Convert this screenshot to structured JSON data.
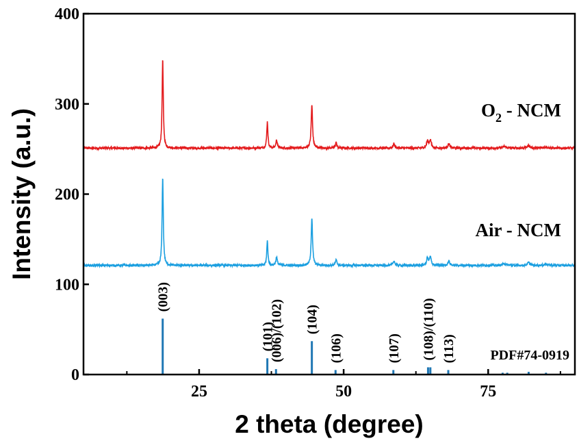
{
  "chart_data": {
    "type": "line",
    "title": "",
    "xlabel": "2 theta (degree)",
    "ylabel": "Intensity (a.u.)",
    "xlim": [
      5,
      90
    ],
    "ylim": [
      0,
      400
    ],
    "x_ticks": [
      25,
      50,
      75
    ],
    "x_ticks_minor": [
      12.5,
      37.5,
      62.5,
      87.5
    ],
    "y_ticks": [
      0,
      100,
      200,
      300,
      400
    ],
    "series": [
      {
        "name": "O₂ - NCM",
        "label_main": "O",
        "label_sub": "2",
        "label_rest": " - NCM",
        "color": "#e31a1c",
        "baseline": 251,
        "noise": 1.2,
        "peaks": [
          {
            "x": 18.7,
            "height": 99,
            "w": 0.12
          },
          {
            "x": 36.8,
            "height": 29,
            "w": 0.12
          },
          {
            "x": 38.4,
            "height": 9,
            "w": 0.15
          },
          {
            "x": 44.5,
            "height": 48,
            "w": 0.14
          },
          {
            "x": 48.7,
            "height": 6,
            "w": 0.15
          },
          {
            "x": 58.7,
            "height": 5,
            "w": 0.18
          },
          {
            "x": 64.5,
            "height": 8,
            "w": 0.18
          },
          {
            "x": 65.0,
            "height": 9,
            "w": 0.18
          },
          {
            "x": 68.2,
            "height": 5,
            "w": 0.18
          },
          {
            "x": 77.8,
            "height": 2,
            "w": 0.3
          },
          {
            "x": 82.0,
            "height": 3,
            "w": 0.25
          },
          {
            "x": 85.0,
            "height": 1.5,
            "w": 0.3
          }
        ]
      },
      {
        "name": "Air - NCM",
        "label_main": "Air - NCM",
        "color": "#1b9fe0",
        "baseline": 121,
        "noise": 1.2,
        "peaks": [
          {
            "x": 18.7,
            "height": 99,
            "w": 0.12
          },
          {
            "x": 36.8,
            "height": 27,
            "w": 0.12
          },
          {
            "x": 38.4,
            "height": 9,
            "w": 0.15
          },
          {
            "x": 44.5,
            "height": 52,
            "w": 0.14
          },
          {
            "x": 48.7,
            "height": 6,
            "w": 0.15
          },
          {
            "x": 58.7,
            "height": 5,
            "w": 0.18
          },
          {
            "x": 64.5,
            "height": 8,
            "w": 0.18
          },
          {
            "x": 65.0,
            "height": 9,
            "w": 0.18
          },
          {
            "x": 68.2,
            "height": 5,
            "w": 0.18
          },
          {
            "x": 77.8,
            "height": 2,
            "w": 0.3
          },
          {
            "x": 82.0,
            "height": 3,
            "w": 0.25
          },
          {
            "x": 85.0,
            "height": 1.5,
            "w": 0.3
          }
        ]
      }
    ],
    "reference": {
      "name": "PDF#74-0919",
      "color": "#1f77b4",
      "sticks": [
        {
          "x": 18.7,
          "value": 62,
          "label": "(003)"
        },
        {
          "x": 36.8,
          "value": 18,
          "label": "(101)"
        },
        {
          "x": 38.3,
          "value": 6,
          "label": "(006)/(102)"
        },
        {
          "x": 44.5,
          "value": 37,
          "label": "(104)"
        },
        {
          "x": 48.6,
          "value": 5,
          "label": "(106)"
        },
        {
          "x": 58.6,
          "value": 5,
          "label": "(107)"
        },
        {
          "x": 64.6,
          "value": 8,
          "label": "(108)/(110)"
        },
        {
          "x": 65.0,
          "value": 8,
          "label": ""
        },
        {
          "x": 68.1,
          "value": 5,
          "label": "(113)"
        },
        {
          "x": 77.5,
          "value": 2,
          "label": ""
        },
        {
          "x": 78.3,
          "value": 2,
          "label": ""
        },
        {
          "x": 82.0,
          "value": 3,
          "label": ""
        },
        {
          "x": 85.0,
          "value": 2,
          "label": ""
        }
      ]
    }
  }
}
